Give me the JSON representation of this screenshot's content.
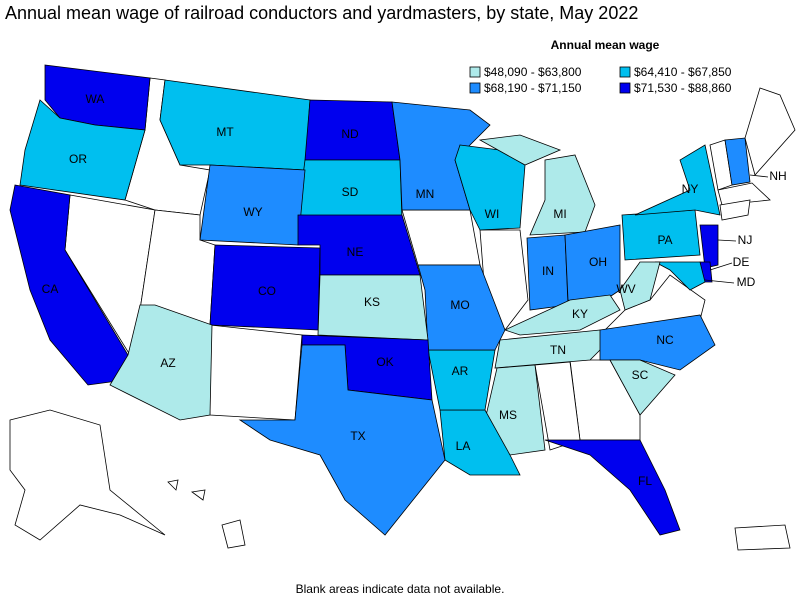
{
  "title": "Annual mean wage of railroad conductors and yardmasters, by state, May 2022",
  "legend": {
    "title": "Annual mean wage",
    "items": [
      {
        "label": "$48,090 - $63,800",
        "color": "#aeeaea",
        "states": [
          "MI",
          "KS",
          "KY",
          "WV",
          "AZ",
          "TN",
          "SC",
          "MS"
        ]
      },
      {
        "label": "$64,410 - $67,850",
        "color": "#00bfef",
        "states": [
          "OR",
          "MT",
          "SD",
          "WI",
          "NY",
          "PA",
          "MD",
          "AR",
          "LA"
        ]
      },
      {
        "label": "$68,190 - $71,150",
        "color": "#1e8cff",
        "states": [
          "MN",
          "WY",
          "NH",
          "IN",
          "OH",
          "MO",
          "NC",
          "TX"
        ]
      },
      {
        "label": "$71,530 - $88,860",
        "color": "#0000ee",
        "states": [
          "WA",
          "CA",
          "ND",
          "NE",
          "CO",
          "OK",
          "NJ",
          "DE",
          "FL"
        ]
      }
    ]
  },
  "footnote": "Blank areas indicate data not available."
}
